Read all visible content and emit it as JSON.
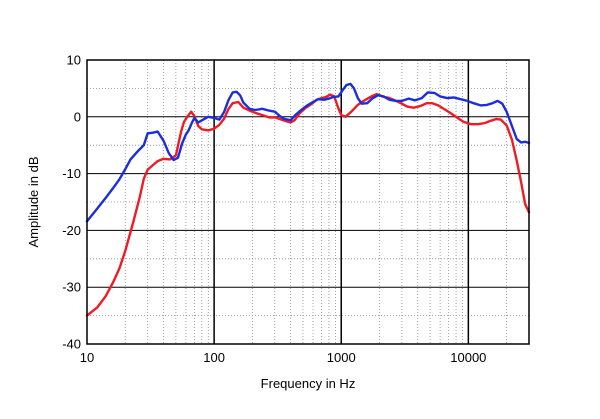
{
  "chart_data": {
    "type": "line",
    "title": "",
    "xlabel": "Frequency in Hz",
    "ylabel": "Amplitude in dB",
    "xscale": "log",
    "xlim": [
      10,
      30000
    ],
    "ylim": [
      -40,
      10
    ],
    "x_ticks": [
      10,
      100,
      1000,
      10000
    ],
    "x_tick_labels": [
      "10",
      "100",
      "1000",
      "10000"
    ],
    "y_ticks": [
      10,
      0,
      -10,
      -20,
      -30,
      -40
    ],
    "y_tick_labels": [
      "10",
      "0",
      "-10",
      "-20",
      "-30",
      "-40"
    ],
    "grid": true,
    "legend": "none",
    "series": [
      {
        "color": "#ee1c25",
        "points": [
          [
            10,
            -35
          ],
          [
            12,
            -33.6
          ],
          [
            14,
            -31.6
          ],
          [
            16,
            -29.2
          ],
          [
            18,
            -26.7
          ],
          [
            20,
            -23.6
          ],
          [
            23,
            -18.7
          ],
          [
            26,
            -14.1
          ],
          [
            28,
            -10.9
          ],
          [
            30,
            -9.3
          ],
          [
            33,
            -8.5
          ],
          [
            36,
            -7.8
          ],
          [
            40,
            -7.4
          ],
          [
            45,
            -7.5
          ],
          [
            50,
            -6.8
          ],
          [
            55,
            -2.6
          ],
          [
            58,
            -0.9
          ],
          [
            62,
            0.1
          ],
          [
            66,
            0.9
          ],
          [
            70,
            0.1
          ],
          [
            75,
            -1.6
          ],
          [
            80,
            -2.2
          ],
          [
            90,
            -2.4
          ],
          [
            100,
            -2.1
          ],
          [
            110,
            -1.4
          ],
          [
            120,
            -0.3
          ],
          [
            130,
            1.4
          ],
          [
            140,
            2.4
          ],
          [
            155,
            2.6
          ],
          [
            170,
            1.6
          ],
          [
            190,
            1.1
          ],
          [
            210,
            0.7
          ],
          [
            240,
            0.3
          ],
          [
            270,
            -0.1
          ],
          [
            300,
            -0.1
          ],
          [
            330,
            -0.4
          ],
          [
            360,
            -0.7
          ],
          [
            400,
            -1.0
          ],
          [
            430,
            -0.6
          ],
          [
            470,
            0.6
          ],
          [
            520,
            1.5
          ],
          [
            580,
            2.2
          ],
          [
            640,
            3.0
          ],
          [
            700,
            3.3
          ],
          [
            760,
            3.5
          ],
          [
            820,
            3.9
          ],
          [
            880,
            3.6
          ],
          [
            950,
            1.5
          ],
          [
            1000,
            0.3
          ],
          [
            1080,
            0.0
          ],
          [
            1200,
            0.9
          ],
          [
            1350,
            2.1
          ],
          [
            1500,
            2.8
          ],
          [
            1700,
            3.5
          ],
          [
            1900,
            4.0
          ],
          [
            2100,
            3.6
          ],
          [
            2400,
            3.3
          ],
          [
            2700,
            2.8
          ],
          [
            3000,
            2.3
          ],
          [
            3300,
            1.8
          ],
          [
            3700,
            1.6
          ],
          [
            4200,
            1.9
          ],
          [
            4700,
            2.4
          ],
          [
            5200,
            2.4
          ],
          [
            5800,
            2.0
          ],
          [
            6500,
            1.3
          ],
          [
            7300,
            0.6
          ],
          [
            8200,
            -0.2
          ],
          [
            9200,
            -0.9
          ],
          [
            10500,
            -1.3
          ],
          [
            12000,
            -1.3
          ],
          [
            13500,
            -1.1
          ],
          [
            15000,
            -0.7
          ],
          [
            16500,
            -0.4
          ],
          [
            18000,
            -0.5
          ],
          [
            20000,
            -1.5
          ],
          [
            22000,
            -4.0
          ],
          [
            24000,
            -7.7
          ],
          [
            26000,
            -11.5
          ],
          [
            28000,
            -15.4
          ],
          [
            30000,
            -16.8
          ]
        ]
      },
      {
        "color": "#1c2ddc",
        "points": [
          [
            10,
            -18.4
          ],
          [
            12,
            -16.2
          ],
          [
            14,
            -14.3
          ],
          [
            16,
            -12.6
          ],
          [
            18,
            -11.0
          ],
          [
            20,
            -9.2
          ],
          [
            22,
            -7.5
          ],
          [
            25,
            -6.1
          ],
          [
            28,
            -5.0
          ],
          [
            30,
            -2.9
          ],
          [
            33,
            -2.8
          ],
          [
            36,
            -2.6
          ],
          [
            40,
            -4.2
          ],
          [
            44,
            -6.4
          ],
          [
            48,
            -7.6
          ],
          [
            52,
            -7.2
          ],
          [
            56,
            -4.7
          ],
          [
            60,
            -3.1
          ],
          [
            63,
            -2.4
          ],
          [
            67,
            -1.0
          ],
          [
            70,
            -0.2
          ],
          [
            75,
            -1.0
          ],
          [
            82,
            -0.5
          ],
          [
            90,
            0.0
          ],
          [
            100,
            -0.2
          ],
          [
            110,
            -0.5
          ],
          [
            120,
            0.9
          ],
          [
            130,
            3.0
          ],
          [
            140,
            4.3
          ],
          [
            150,
            4.4
          ],
          [
            160,
            3.8
          ],
          [
            170,
            2.5
          ],
          [
            190,
            1.4
          ],
          [
            210,
            1.2
          ],
          [
            240,
            1.4
          ],
          [
            270,
            1.1
          ],
          [
            300,
            0.9
          ],
          [
            330,
            0.1
          ],
          [
            360,
            -0.4
          ],
          [
            400,
            -0.6
          ],
          [
            440,
            0.4
          ],
          [
            490,
            1.3
          ],
          [
            540,
            2.0
          ],
          [
            600,
            2.6
          ],
          [
            660,
            3.1
          ],
          [
            730,
            3.0
          ],
          [
            800,
            3.2
          ],
          [
            870,
            3.5
          ],
          [
            950,
            3.6
          ],
          [
            1020,
            4.6
          ],
          [
            1100,
            5.6
          ],
          [
            1180,
            5.8
          ],
          [
            1260,
            5.0
          ],
          [
            1350,
            3.3
          ],
          [
            1450,
            2.3
          ],
          [
            1600,
            2.4
          ],
          [
            1750,
            3.2
          ],
          [
            1950,
            3.8
          ],
          [
            2150,
            3.6
          ],
          [
            2400,
            3.0
          ],
          [
            2700,
            2.8
          ],
          [
            3000,
            2.8
          ],
          [
            3400,
            3.2
          ],
          [
            3800,
            2.9
          ],
          [
            4300,
            3.3
          ],
          [
            4800,
            4.3
          ],
          [
            5400,
            4.2
          ],
          [
            6000,
            3.6
          ],
          [
            6800,
            3.3
          ],
          [
            7700,
            3.4
          ],
          [
            8700,
            3.1
          ],
          [
            9800,
            2.8
          ],
          [
            11000,
            2.4
          ],
          [
            12500,
            2.0
          ],
          [
            14000,
            2.1
          ],
          [
            15500,
            2.4
          ],
          [
            17000,
            2.8
          ],
          [
            18500,
            2.3
          ],
          [
            20000,
            0.9
          ],
          [
            22000,
            -1.6
          ],
          [
            24000,
            -3.9
          ],
          [
            26000,
            -4.5
          ],
          [
            28000,
            -4.4
          ],
          [
            30000,
            -4.6
          ]
        ]
      }
    ]
  }
}
